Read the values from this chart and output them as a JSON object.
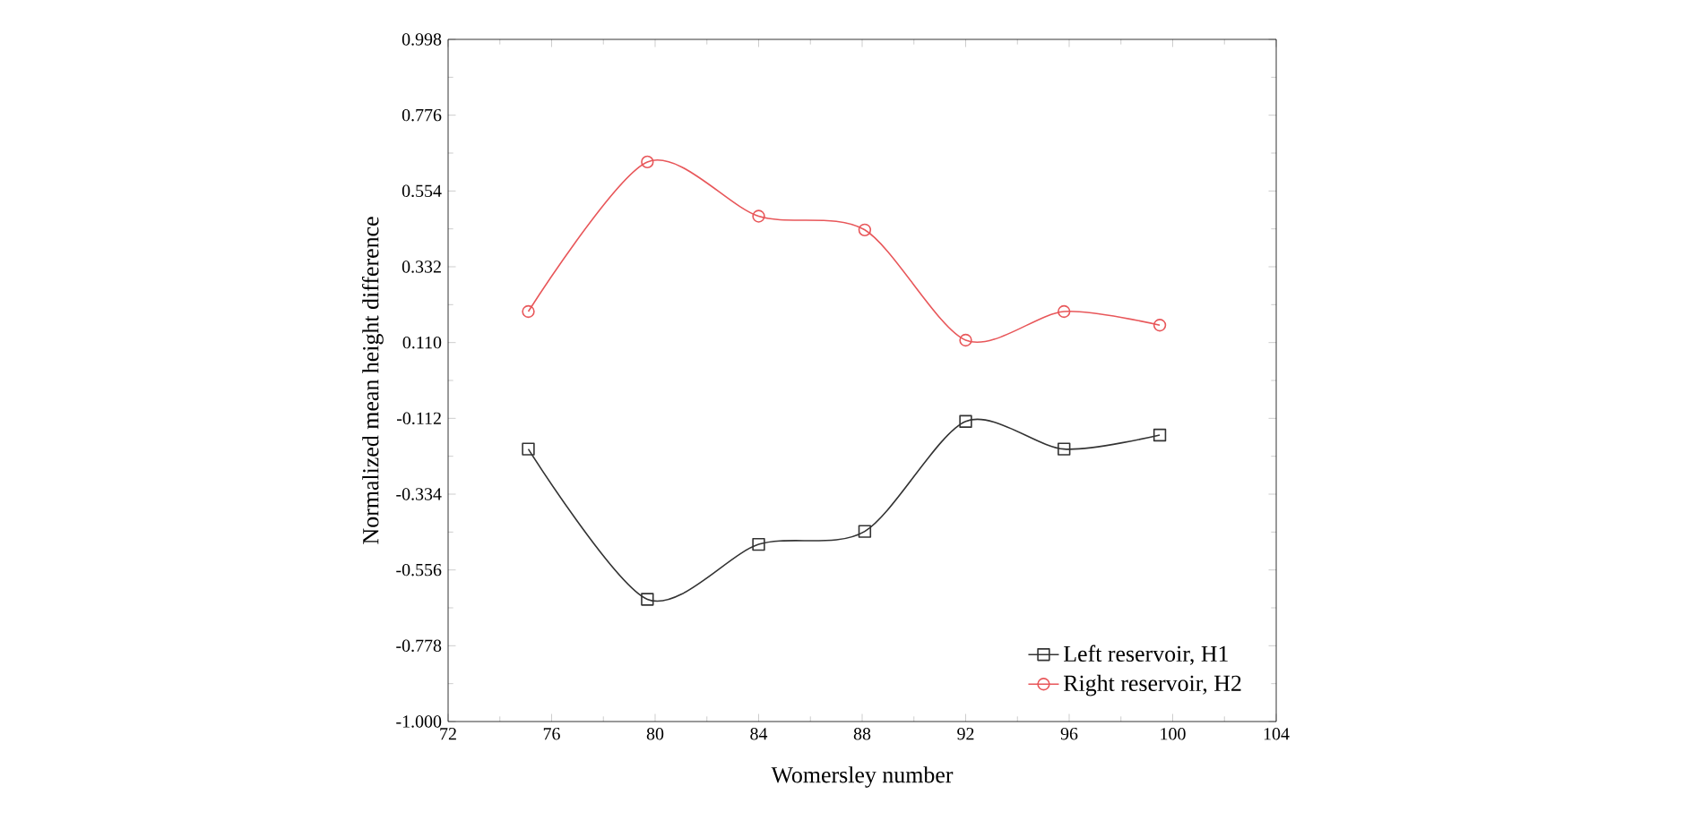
{
  "chart_data": {
    "type": "line",
    "xlabel": "Womersley number",
    "ylabel": "Normalized mean height difference",
    "xlim": [
      72,
      104
    ],
    "xticks": [
      72,
      76,
      80,
      84,
      88,
      92,
      96,
      100,
      104
    ],
    "ylim": [
      -1.0,
      0.998
    ],
    "yticks": [
      {
        "value": -1.0,
        "label": "-1.000"
      },
      -0.778,
      -0.556,
      -0.334,
      -0.112,
      {
        "value": 0.11,
        "label": "0.110"
      },
      0.332,
      0.554,
      0.776,
      0.998
    ],
    "legend": "bottom right",
    "grid": false,
    "series": [
      {
        "name": "Left reservoir, H1",
        "color": "#333333",
        "marker": "square",
        "x": [
          75.1,
          79.7,
          84.0,
          88.1,
          92.0,
          95.8,
          99.5
        ],
        "values": [
          -0.202,
          -0.642,
          -0.481,
          -0.443,
          -0.121,
          -0.202,
          -0.161
        ]
      },
      {
        "name": "Right reservoir, H2",
        "color": "#e8575a",
        "marker": "circle",
        "x": [
          75.1,
          79.7,
          84.0,
          88.1,
          92.0,
          95.8,
          99.5
        ],
        "values": [
          0.201,
          0.639,
          0.48,
          0.44,
          0.117,
          0.201,
          0.161
        ]
      }
    ]
  }
}
